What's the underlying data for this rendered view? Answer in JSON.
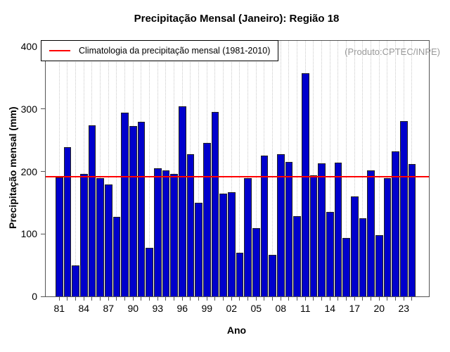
{
  "chart_data": {
    "type": "bar",
    "title": "Precipitação Mensal (Janeiro): Região 18",
    "xlabel": "Ano",
    "ylabel": "Precipitação mensal (mm)",
    "annotation": "(Produto:CPTEC/INPE)",
    "legend": {
      "label": "Climatologia da precipitação mensal (1981-2010)",
      "position": "top-left"
    },
    "ylim": [
      0,
      400
    ],
    "yticks": [
      0,
      100,
      200,
      300,
      400
    ],
    "grid": "vertical-dotted",
    "bar_color": "#0000cc",
    "bar_border_color": "#222222",
    "climatology_color": "#ff0000",
    "climatology_value": 192,
    "years": [
      1981,
      1982,
      1983,
      1984,
      1985,
      1986,
      1987,
      1988,
      1989,
      1990,
      1991,
      1992,
      1993,
      1994,
      1995,
      1996,
      1997,
      1998,
      1999,
      2000,
      2001,
      2002,
      2003,
      2004,
      2005,
      2006,
      2007,
      2008,
      2009,
      2010,
      2011,
      2012,
      2013,
      2014,
      2015,
      2016,
      2017,
      2018,
      2019,
      2020,
      2021,
      2022,
      2023,
      2024
    ],
    "values": [
      190,
      239,
      50,
      196,
      274,
      189,
      179,
      127,
      294,
      273,
      279,
      78,
      205,
      202,
      196,
      304,
      228,
      150,
      246,
      295,
      165,
      167,
      70,
      189,
      109,
      225,
      66,
      228,
      215,
      129,
      357,
      194,
      213,
      135,
      214,
      94,
      160,
      125,
      202,
      98,
      189,
      232,
      281,
      212
    ],
    "x_tick_label_every": 3,
    "x_tick_labels_shown": [
      "81",
      "84",
      "87",
      "90",
      "93",
      "96",
      "99",
      "02",
      "05",
      "08",
      "11",
      "14",
      "17",
      "20",
      "23"
    ]
  }
}
